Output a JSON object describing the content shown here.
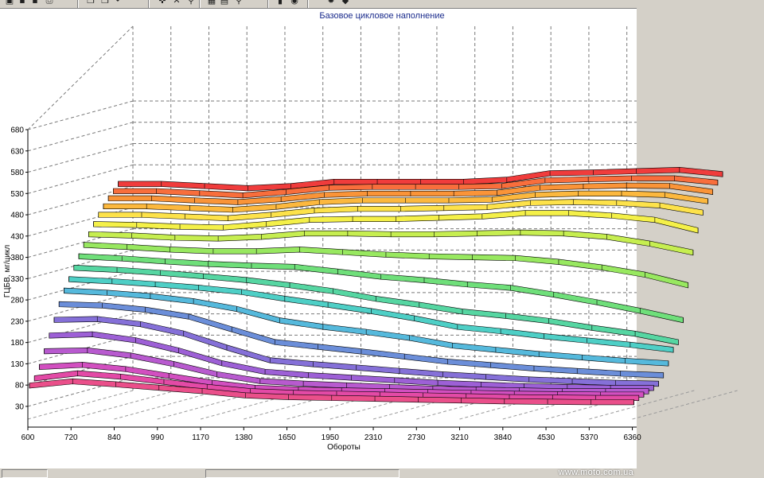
{
  "toolbar": {
    "buttons": [
      {
        "name": "open-icon",
        "glyph": "▣"
      },
      {
        "name": "save-icon",
        "glyph": "▪"
      },
      {
        "name": "save-as-icon",
        "glyph": "▪"
      },
      {
        "name": "print-icon",
        "glyph": "⎙"
      },
      {
        "name": "copy-icon",
        "glyph": "❐"
      },
      {
        "name": "paste-icon",
        "glyph": "❐"
      },
      {
        "name": "undo-icon",
        "glyph": "↶"
      },
      {
        "name": "tool-icon",
        "glyph": "✜"
      },
      {
        "name": "cross-icon",
        "glyph": "✕"
      },
      {
        "name": "zoom-icon",
        "glyph": "⚲"
      },
      {
        "name": "grid-icon",
        "glyph": "▦"
      },
      {
        "name": "table-icon",
        "glyph": "▤"
      },
      {
        "name": "zoom-out-icon",
        "glyph": "⚲"
      },
      {
        "name": "chart-icon",
        "glyph": "▮"
      },
      {
        "name": "globe-icon",
        "glyph": "◉"
      },
      {
        "name": "settings-icon",
        "glyph": "✹"
      },
      {
        "name": "book-icon",
        "glyph": "◆"
      }
    ]
  },
  "watermark": "www.moto.com.ua",
  "chart_data": {
    "type": "3d-surface",
    "title": "Базовое цикловое наполнение",
    "xlabel": "Обороты",
    "ylabel": "ГЦБВ, мг/цикл",
    "zlim": [
      0,
      680
    ],
    "z_ticks": [
      "680",
      "630",
      "580",
      "530",
      "480",
      "430",
      "380",
      "330",
      "280",
      "230",
      "180",
      "130",
      "80",
      "30"
    ],
    "x_ticks": [
      "600",
      "720",
      "840",
      "990",
      "1170",
      "1380",
      "1650",
      "1950",
      "2310",
      "2730",
      "3210",
      "3840",
      "4530",
      "5370",
      "6360"
    ],
    "grid": true,
    "series_colors": [
      "#f03c3c",
      "#f86e3c",
      "#fa9438",
      "#fcb83e",
      "#fde24a",
      "#f4f048",
      "#c6ee50",
      "#98e860",
      "#6fdf7a",
      "#56d6a2",
      "#4ecfc6",
      "#55b9dc",
      "#6b8ed9",
      "#8570d8",
      "#9d60d6",
      "#b85acf",
      "#d24fc0",
      "#e34aa6",
      "#ea4f8a"
    ],
    "series": [
      {
        "values": [
          525,
          525,
          520,
          515,
          520,
          530,
          530,
          530,
          530,
          535,
          550,
          552,
          555,
          558,
          548
        ]
      },
      {
        "values": [
          510,
          510,
          505,
          500,
          508,
          518,
          520,
          520,
          520,
          522,
          535,
          538,
          540,
          540,
          530
        ]
      },
      {
        "values": [
          495,
          495,
          490,
          486,
          493,
          503,
          506,
          506,
          506,
          508,
          520,
          523,
          525,
          524,
          510
        ]
      },
      {
        "values": [
          478,
          478,
          474,
          470,
          477,
          488,
          492,
          492,
          492,
          494,
          505,
          508,
          508,
          505,
          490
        ]
      },
      {
        "values": [
          460,
          460,
          456,
          452,
          460,
          470,
          474,
          474,
          476,
          478,
          488,
          490,
          488,
          482,
          465
        ]
      },
      {
        "values": [
          440,
          438,
          434,
          432,
          440,
          450,
          452,
          452,
          455,
          458,
          466,
          466,
          460,
          450,
          425
        ]
      },
      {
        "values": [
          418,
          415,
          410,
          408,
          412,
          420,
          420,
          418,
          418,
          420,
          422,
          420,
          412,
          396,
          375
        ]
      },
      {
        "values": [
          395,
          390,
          384,
          380,
          380,
          384,
          378,
          372,
          368,
          366,
          364,
          355,
          342,
          325,
          300
        ]
      },
      {
        "values": [
          370,
          365,
          358,
          352,
          348,
          345,
          334,
          322,
          314,
          304,
          296,
          280,
          262,
          242,
          220
        ]
      },
      {
        "values": [
          345,
          340,
          333,
          325,
          316,
          304,
          290,
          272,
          258,
          242,
          232,
          220,
          204,
          190,
          170
        ]
      },
      {
        "values": [
          320,
          315,
          308,
          300,
          290,
          274,
          260,
          245,
          228,
          208,
          198,
          186,
          176,
          166,
          154
        ]
      },
      {
        "values": [
          295,
          290,
          282,
          270,
          252,
          225,
          210,
          198,
          184,
          166,
          156,
          146,
          138,
          130,
          124
        ]
      },
      {
        "values": [
          265,
          262,
          252,
          236,
          206,
          176,
          165,
          154,
          142,
          130,
          122,
          114,
          108,
          102,
          98
        ]
      },
      {
        "values": [
          230,
          232,
          220,
          198,
          165,
          135,
          126,
          118,
          110,
          102,
          96,
          90,
          86,
          82,
          80
        ]
      },
      {
        "values": [
          195,
          198,
          184,
          160,
          130,
          110,
          102,
          96,
          90,
          84,
          80,
          76,
          74,
          72,
          72
        ]
      },
      {
        "values": [
          160,
          162,
          150,
          130,
          106,
          90,
          84,
          80,
          76,
          72,
          70,
          68,
          66,
          66,
          66
        ]
      },
      {
        "values": [
          125,
          130,
          120,
          104,
          88,
          76,
          72,
          70,
          68,
          66,
          64,
          62,
          61,
          60,
          60
        ]
      },
      {
        "values": [
          100,
          112,
          104,
          92,
          80,
          70,
          66,
          64,
          62,
          60,
          58,
          56,
          55,
          54,
          54
        ]
      },
      {
        "values": [
          85,
          95,
          88,
          80,
          72,
          62,
          58,
          56,
          54,
          52,
          50,
          48,
          47,
          46,
          46
        ]
      }
    ]
  }
}
